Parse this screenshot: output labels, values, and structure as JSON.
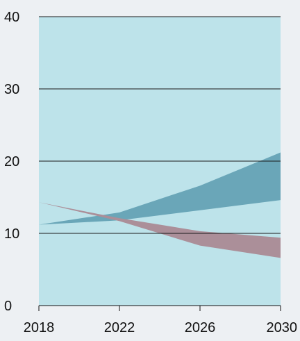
{
  "chart_data": {
    "type": "area",
    "title": "",
    "xlabel": "",
    "ylabel": "",
    "x": [
      2018,
      2022,
      2026,
      2030
    ],
    "xticks": [
      "2018",
      "2022",
      "2026",
      "2030"
    ],
    "yticks": [
      "0",
      "10",
      "20",
      "30",
      "40"
    ],
    "xlim": [
      2018,
      2030
    ],
    "ylim": [
      0,
      40
    ],
    "grid": "horizontal",
    "legend": "none",
    "colors": {
      "plot_background": "#bde3ea",
      "page_background": "#edf0f3",
      "gridline": "#1a1a1a"
    },
    "series": [
      {
        "color": "#6aa6b8",
        "lower": [
          11.2,
          11.8,
          13.2,
          14.6
        ],
        "upper": [
          11.2,
          12.9,
          16.6,
          21.2
        ]
      },
      {
        "color": "#ab8f99",
        "lower": [
          14.3,
          11.7,
          8.3,
          6.6
        ],
        "upper": [
          14.3,
          12.1,
          10.3,
          9.4
        ]
      }
    ]
  }
}
